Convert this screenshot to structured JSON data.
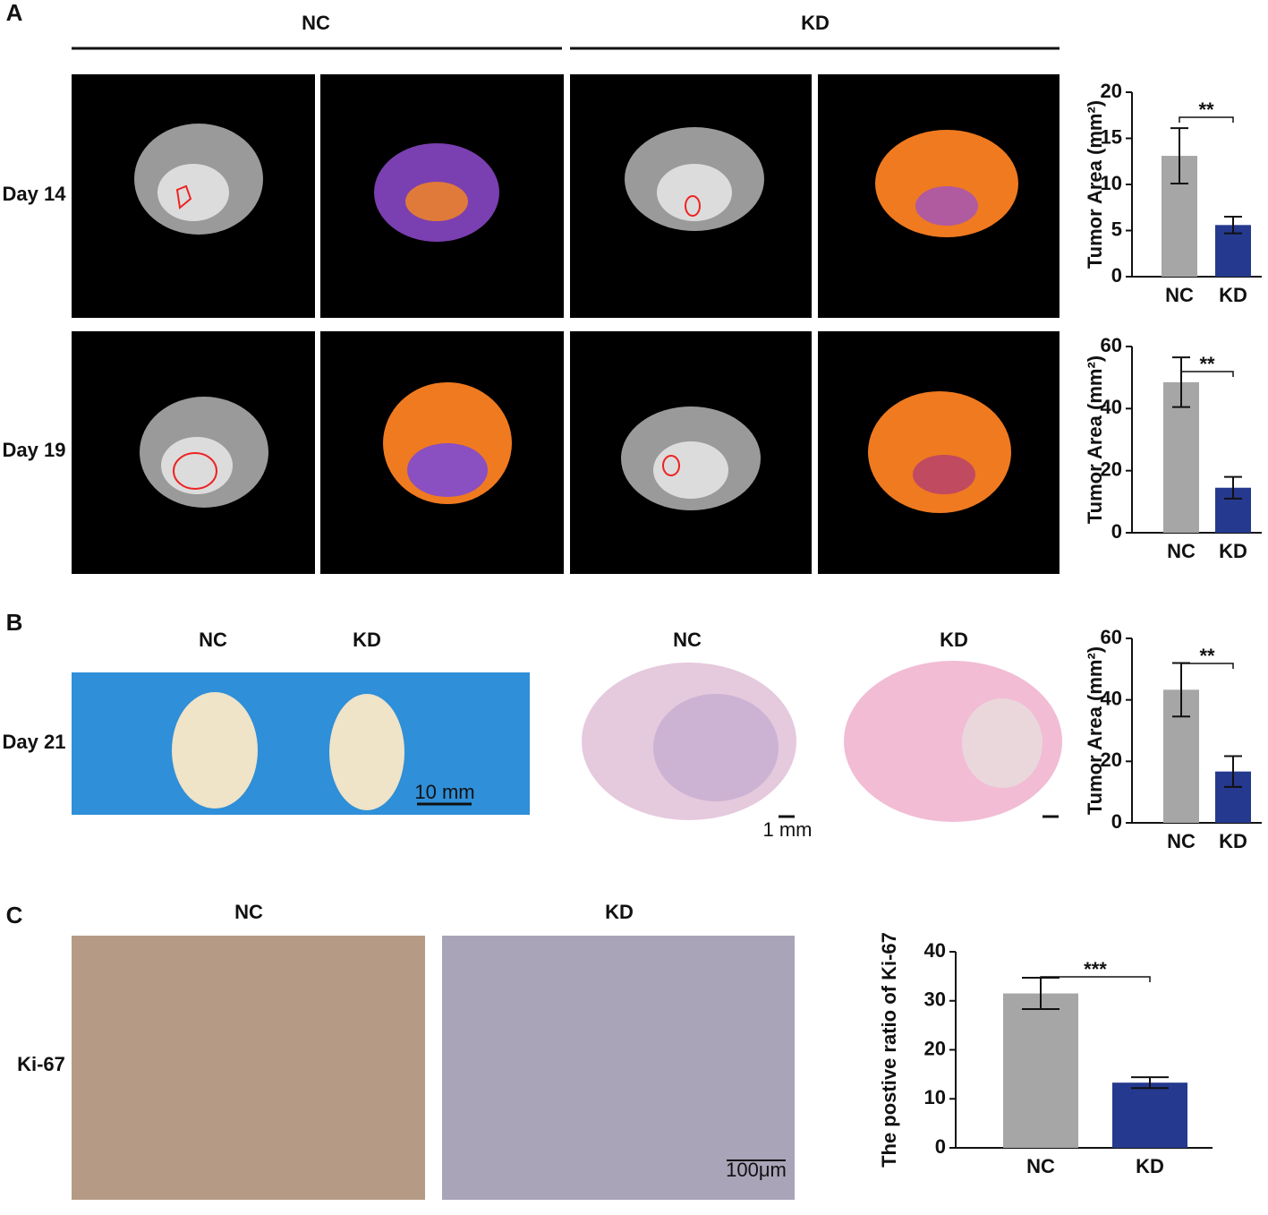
{
  "figure": {
    "panel_labels": [
      "A",
      "B",
      "C"
    ],
    "panel_a": {
      "columns": [
        "NC",
        "KD"
      ],
      "rows": [
        "Day 14",
        "Day 19"
      ]
    },
    "panel_b": {
      "photo_columns": [
        "NC",
        "KD"
      ],
      "row": "Day 21",
      "photo_scale": "10 mm",
      "histology_columns": [
        "NC",
        "KD"
      ],
      "histology_scale": "1 mm"
    },
    "panel_c": {
      "columns": [
        "NC",
        "KD"
      ],
      "row": "Ki-67",
      "scale": "100μm"
    }
  },
  "chart_data": [
    {
      "type": "bar",
      "y_label": "Tumor Area (mm²)",
      "categories": [
        "NC",
        "KD"
      ],
      "values": [
        13.1,
        5.6
      ],
      "errors": [
        3,
        0.9
      ],
      "colors": [
        "#a6a6a6",
        "#253a8e"
      ],
      "ylim": [
        0,
        20
      ],
      "yticks": [
        0,
        5,
        10,
        15,
        20
      ],
      "significance": "**"
    },
    {
      "type": "bar",
      "y_label": "Tumor Area (mm²)",
      "categories": [
        "NC",
        "KD"
      ],
      "values": [
        48.5,
        14.5
      ],
      "errors": [
        8,
        3.5
      ],
      "colors": [
        "#a6a6a6",
        "#253a8e"
      ],
      "ylim": [
        0,
        60
      ],
      "yticks": [
        0,
        20,
        40,
        60
      ],
      "significance": "**"
    },
    {
      "type": "bar",
      "y_label": "Tumor Area (mm²)",
      "categories": [
        "NC",
        "KD"
      ],
      "values": [
        43.3,
        16.7
      ],
      "errors": [
        8.7,
        5
      ],
      "colors": [
        "#a6a6a6",
        "#253a8e"
      ],
      "ylim": [
        0,
        60
      ],
      "yticks": [
        0,
        20,
        40,
        60
      ],
      "significance": "**"
    },
    {
      "type": "bar",
      "y_label": "The postive ratio of Ki-67",
      "categories": [
        "NC",
        "KD"
      ],
      "values": [
        31.5,
        13.3
      ],
      "errors": [
        3.2,
        1.1
      ],
      "colors": [
        "#a6a6a6",
        "#253a8e"
      ],
      "ylim": [
        0,
        40
      ],
      "yticks": [
        0,
        10,
        20,
        30,
        40
      ],
      "significance": "***"
    }
  ]
}
